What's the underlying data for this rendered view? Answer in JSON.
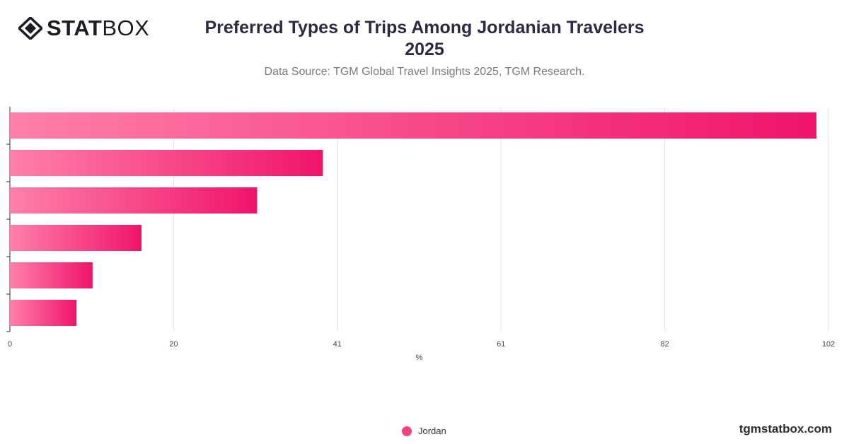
{
  "brand": {
    "bold": "STAT",
    "light": "BOX"
  },
  "title_line1": "Preferred Types of Trips Among Jordanian Travelers",
  "title_line2": "2025",
  "subtitle": "Data Source: TGM Global Travel Insights 2025, TGM Research.",
  "site": "tgmstatbox.com",
  "colors": {
    "bar_start": "#ff80ab",
    "bar_end": "#f0146a",
    "legend": "#f0437f"
  },
  "chart_data": {
    "type": "bar",
    "orientation": "horizontal",
    "categories": [
      "",
      "",
      "",
      "",
      "",
      ""
    ],
    "series": [
      {
        "name": "Jordan",
        "values": [
          100.5,
          39,
          30.8,
          16.4,
          10.3,
          8.3
        ]
      }
    ],
    "xlabel": "%",
    "xlim": [
      0,
      102
    ],
    "xticks": [
      "0",
      "20",
      "41",
      "61",
      "82",
      "102"
    ],
    "grid": true,
    "legend": "bottom-center"
  }
}
